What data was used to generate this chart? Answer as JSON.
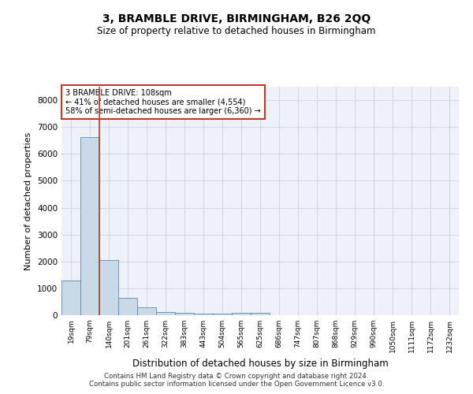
{
  "title": "3, BRAMBLE DRIVE, BIRMINGHAM, B26 2QQ",
  "subtitle": "Size of property relative to detached houses in Birmingham",
  "xlabel": "Distribution of detached houses by size in Birmingham",
  "ylabel": "Number of detached properties",
  "categories": [
    "19sqm",
    "79sqm",
    "140sqm",
    "201sqm",
    "261sqm",
    "322sqm",
    "383sqm",
    "443sqm",
    "504sqm",
    "565sqm",
    "625sqm",
    "686sqm",
    "747sqm",
    "807sqm",
    "868sqm",
    "929sqm",
    "990sqm",
    "1050sqm",
    "1111sqm",
    "1172sqm",
    "1232sqm"
  ],
  "values": [
    1300,
    6620,
    2050,
    650,
    290,
    130,
    90,
    60,
    50,
    100,
    100,
    0,
    0,
    0,
    0,
    0,
    0,
    0,
    0,
    0,
    0
  ],
  "bar_color": "#c9d9e8",
  "bar_edge_color": "#5a8ab0",
  "vline_x": 1.5,
  "vline_color": "#c0392b",
  "annotation_text": "3 BRAMBLE DRIVE: 108sqm\n← 41% of detached houses are smaller (4,554)\n58% of semi-detached houses are larger (6,360) →",
  "annotation_box_color": "#c0392b",
  "ylim": [
    0,
    8500
  ],
  "yticks": [
    0,
    1000,
    2000,
    3000,
    4000,
    5000,
    6000,
    7000,
    8000
  ],
  "grid_color": "#d0d8e8",
  "background_color": "#eef2f8",
  "footer_line1": "Contains HM Land Registry data © Crown copyright and database right 2024.",
  "footer_line2": "Contains public sector information licensed under the Open Government Licence v3.0."
}
